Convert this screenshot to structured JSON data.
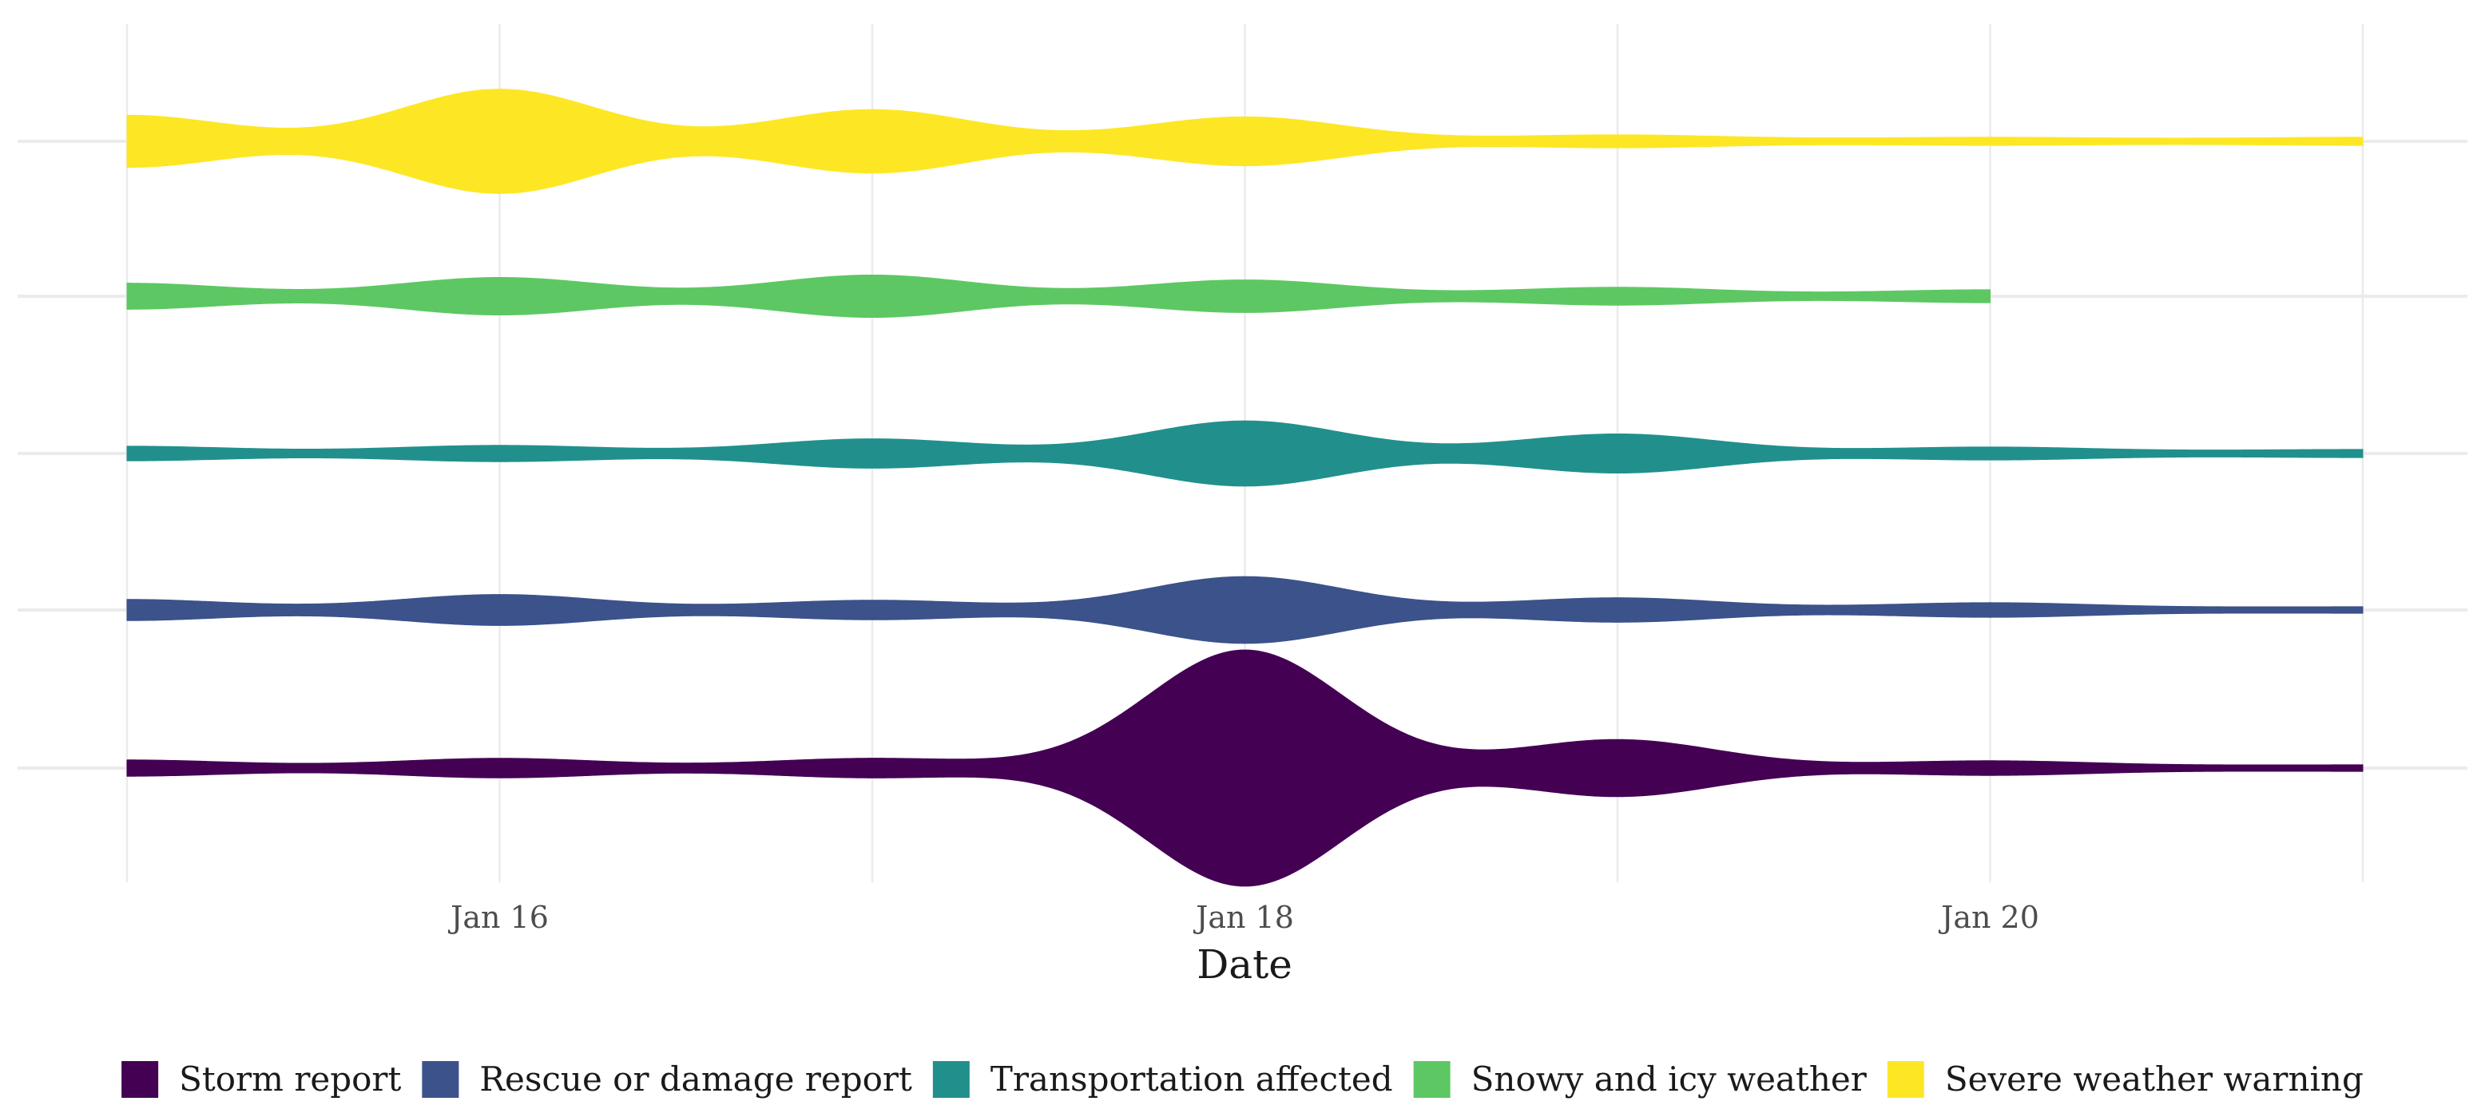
{
  "chart_data": {
    "type": "area",
    "title": "",
    "xlabel": "Date",
    "ylabel": "",
    "x_ticks": [
      {
        "date": "2024-01-16",
        "label": "Jan 16"
      },
      {
        "date": "2024-01-18",
        "label": "Jan 18"
      },
      {
        "date": "2024-01-20",
        "label": "Jan 20"
      }
    ],
    "x_range": [
      "2024-01-15",
      "2024-01-21"
    ],
    "grid": true,
    "legend_position": "bottom",
    "series": [
      {
        "name": "Storm report",
        "color": "#440154",
        "x": [
          "2024-01-15",
          "2024-01-16",
          "2024-01-17",
          "2024-01-18",
          "2024-01-19",
          "2024-01-20",
          "2024-01-21"
        ],
        "values": [
          1,
          1.2,
          1.2,
          14.5,
          3.5,
          0.9,
          0.4
        ]
      },
      {
        "name": "Rescue or damage report",
        "color": "#3b528b",
        "x": [
          "2024-01-15",
          "2024-01-16",
          "2024-01-17",
          "2024-01-18",
          "2024-01-19",
          "2024-01-20",
          "2024-01-21"
        ],
        "values": [
          1.3,
          1.9,
          1.2,
          4.1,
          1.5,
          0.9,
          0.4
        ]
      },
      {
        "name": "Transportation affected",
        "color": "#21908c",
        "x": [
          "2024-01-15",
          "2024-01-16",
          "2024-01-17",
          "2024-01-18",
          "2024-01-19",
          "2024-01-20",
          "2024-01-21"
        ],
        "values": [
          0.9,
          1,
          1.8,
          4,
          2.4,
          0.8,
          0.5
        ]
      },
      {
        "name": "Snowy and icy weather",
        "color": "#5dc863",
        "x": [
          "2024-01-15",
          "2024-01-16",
          "2024-01-17",
          "2024-01-18",
          "2024-01-19",
          "2024-01-20"
        ],
        "values": [
          1.6,
          2.3,
          2.6,
          2,
          1.1,
          0.8
        ]
      },
      {
        "name": "Severe weather warning",
        "color": "#fde725",
        "x": [
          "2024-01-15",
          "2024-01-16",
          "2024-01-17",
          "2024-01-18",
          "2024-01-19",
          "2024-01-20",
          "2024-01-21"
        ],
        "values": [
          3.2,
          6.4,
          3.9,
          3,
          0.8,
          0.5,
          0.5
        ]
      }
    ]
  },
  "colors": {
    "grid": "#ebebeb",
    "tick_text": "#4d4d4d",
    "axis_title": "#1a1a1a"
  }
}
